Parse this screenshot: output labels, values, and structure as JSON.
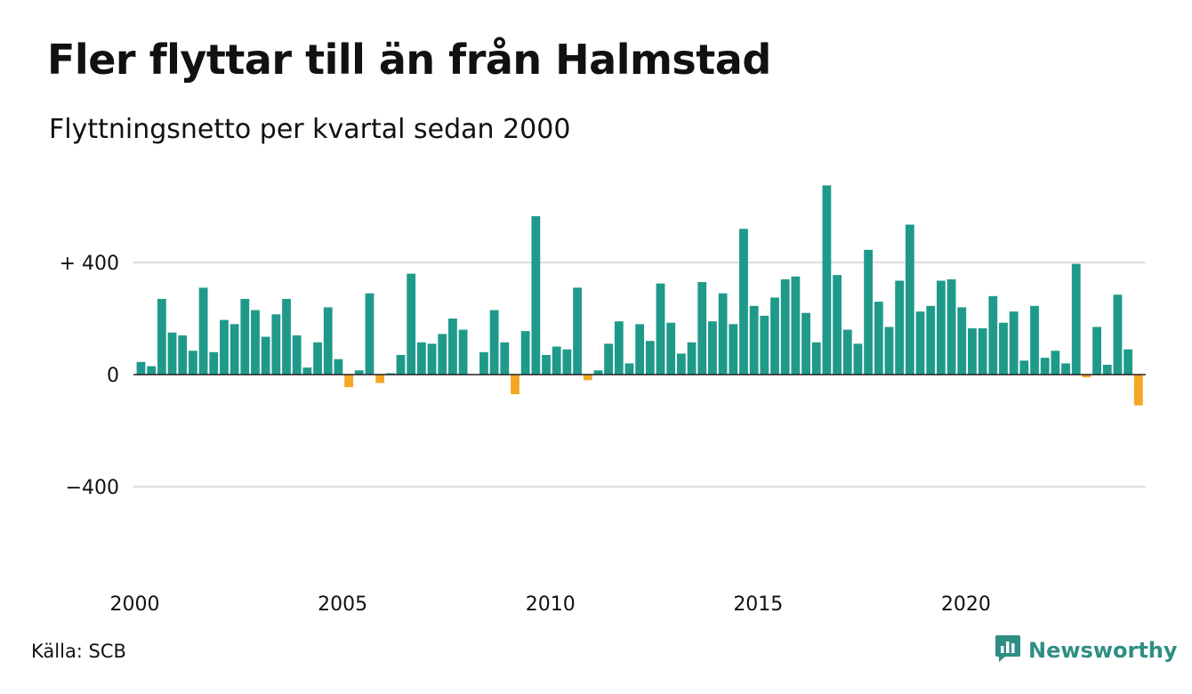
{
  "header": {
    "title": "Fler flyttar till än från Halmstad",
    "subtitle": "Flyttningsnetto per kvartal sedan 2000"
  },
  "footer": {
    "source": "Källa: SCB",
    "brand": "Newsworthy",
    "brand_icon": "newsworthy-logo-icon"
  },
  "colors": {
    "positive": "#1f9a8a",
    "negative": "#f5a623",
    "grid": "#dddddd",
    "zero_line": "#222222",
    "brand": "#2f8e84"
  },
  "chart_data": {
    "type": "bar",
    "title": "Fler flyttar till än från Halmstad",
    "subtitle": "Flyttningsnetto per kvartal sedan 2000",
    "ylim": [
      -400,
      700
    ],
    "yticks": [
      400,
      0,
      -400
    ],
    "ytick_labels": [
      "+ 400",
      "0",
      "−400"
    ],
    "grid": true,
    "x_start_year": 2000,
    "xticks": [
      2000,
      2005,
      2010,
      2015,
      2020
    ],
    "xtick_labels": [
      "2000",
      "2005",
      "2010",
      "2015",
      "2020"
    ],
    "categories": [
      "2000K1",
      "2000K2",
      "2000K3",
      "2000K4",
      "2001K1",
      "2001K2",
      "2001K3",
      "2001K4",
      "2002K1",
      "2002K2",
      "2002K3",
      "2002K4",
      "2003K1",
      "2003K2",
      "2003K3",
      "2003K4",
      "2004K1",
      "2004K2",
      "2004K3",
      "2004K4",
      "2005K1",
      "2005K2",
      "2005K3",
      "2005K4",
      "2006K1",
      "2006K2",
      "2006K3",
      "2006K4",
      "2007K1",
      "2007K2",
      "2007K3",
      "2007K4",
      "2008K1",
      "2008K2",
      "2008K3",
      "2008K4",
      "2009K1",
      "2009K2",
      "2009K3",
      "2009K4",
      "2010K1",
      "2010K2",
      "2010K3",
      "2010K4",
      "2011K1",
      "2011K2",
      "2011K3",
      "2011K4",
      "2012K1",
      "2012K2",
      "2012K3",
      "2012K4",
      "2013K1",
      "2013K2",
      "2013K3",
      "2013K4",
      "2014K1",
      "2014K2",
      "2014K3",
      "2014K4",
      "2015K1",
      "2015K2",
      "2015K3",
      "2015K4",
      "2016K1",
      "2016K2",
      "2016K3",
      "2016K4",
      "2017K1",
      "2017K2",
      "2017K3",
      "2017K4",
      "2018K1",
      "2018K2",
      "2018K3",
      "2018K4",
      "2019K1",
      "2019K2",
      "2019K3",
      "2019K4",
      "2020K1",
      "2020K2",
      "2020K3",
      "2020K4",
      "2021K1",
      "2021K2",
      "2021K3",
      "2021K4",
      "2022K1",
      "2022K2",
      "2022K3",
      "2022K4",
      "2023K1",
      "2023K2",
      "2023K3",
      "2023K4",
      "2024K1",
      "2024K2"
    ],
    "values": [
      45,
      30,
      270,
      150,
      140,
      85,
      310,
      80,
      195,
      180,
      270,
      230,
      135,
      215,
      270,
      140,
      25,
      115,
      240,
      55,
      -45,
      15,
      290,
      -30,
      5,
      70,
      360,
      115,
      110,
      145,
      200,
      160,
      0,
      80,
      230,
      115,
      -70,
      155,
      565,
      70,
      100,
      90,
      310,
      -20,
      15,
      110,
      190,
      40,
      180,
      120,
      325,
      185,
      75,
      115,
      330,
      190,
      290,
      180,
      520,
      245,
      210,
      275,
      340,
      350,
      220,
      115,
      675,
      355,
      160,
      110,
      445,
      260,
      170,
      335,
      535,
      225,
      245,
      335,
      340,
      240,
      165,
      165,
      280,
      185,
      225,
      50,
      245,
      60,
      85,
      40,
      395,
      -10,
      170,
      35,
      285,
      90,
      -110,
      0
    ]
  }
}
